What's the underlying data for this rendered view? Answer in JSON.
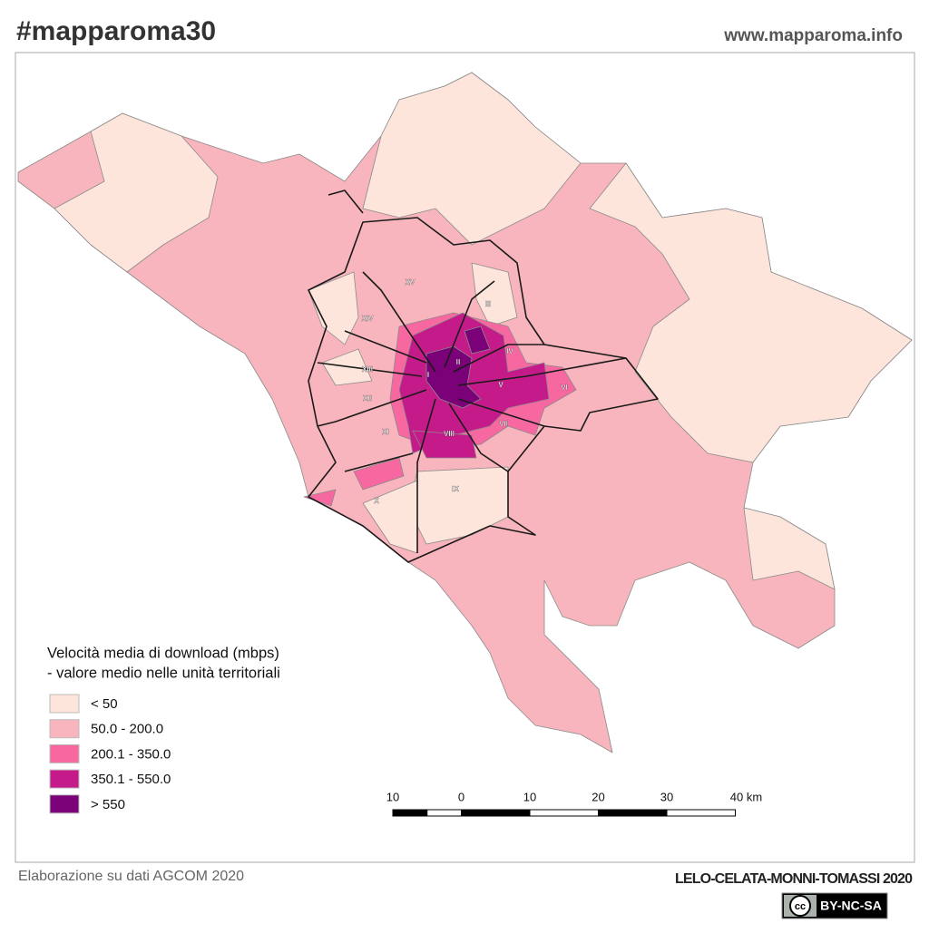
{
  "header": {
    "title": "#mapparoma30",
    "url": "www.mapparoma.info"
  },
  "map": {
    "municipi": [
      "I",
      "II",
      "III",
      "IV",
      "V",
      "VI",
      "VII",
      "VIII",
      "IX",
      "X",
      "XI",
      "XII",
      "XIII",
      "XIV",
      "XV"
    ]
  },
  "legend": {
    "title": [
      "Velocità media di download (mbps)",
      "- valore medio nelle unità territoriali"
    ],
    "items": [
      {
        "label": "< 50",
        "color": "#fde5dc"
      },
      {
        "label": "50.0 - 200.0",
        "color": "#f8b5bd"
      },
      {
        "label": "200.1 - 350.0",
        "color": "#f768a1"
      },
      {
        "label": "350.1 - 550.0",
        "color": "#c51b8a"
      },
      {
        "label": "> 550",
        "color": "#7a0177"
      }
    ]
  },
  "scale_bar": {
    "labels": [
      "10",
      "0",
      "10",
      "20",
      "30",
      "40 km"
    ]
  },
  "footer": {
    "source": "Elaborazione su dati AGCOM 2020",
    "authors": "LELO-CELATA-MONNI-TOMASSI 2020",
    "license": [
      "cc",
      "BY-NC-SA"
    ]
  }
}
